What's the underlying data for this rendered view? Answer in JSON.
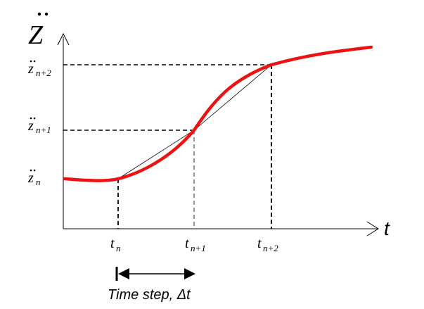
{
  "axes": {
    "y_label": "Z",
    "x_label": "t"
  },
  "y_ticks": [
    {
      "base": "z",
      "sub": "n"
    },
    {
      "base": "z",
      "sub": "n+1"
    },
    {
      "base": "z",
      "sub": "n+2"
    }
  ],
  "x_ticks": [
    {
      "base": "t",
      "sub": "n"
    },
    {
      "base": "t",
      "sub": "n+1"
    },
    {
      "base": "t",
      "sub": "n+2"
    }
  ],
  "time_step_label": "Time step, Δt",
  "colors": {
    "curve": "#ee1111",
    "axes": "#000000",
    "chord": "#000000"
  }
}
